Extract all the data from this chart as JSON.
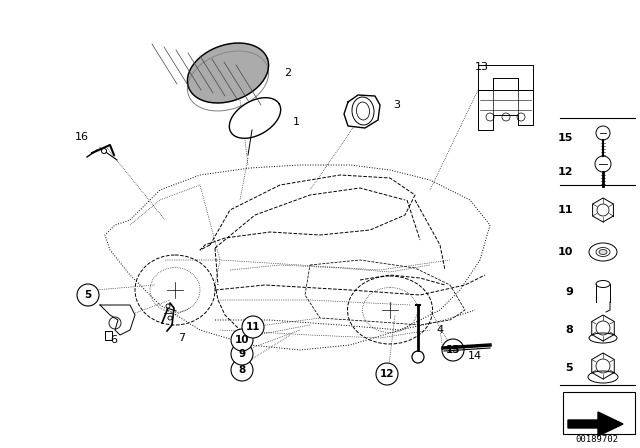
{
  "bg_color": "#ffffff",
  "diagram_id": "00189702",
  "car_color": "#000000",
  "lw": 0.7,
  "fig_w": 6.4,
  "fig_h": 4.48,
  "dpi": 100
}
